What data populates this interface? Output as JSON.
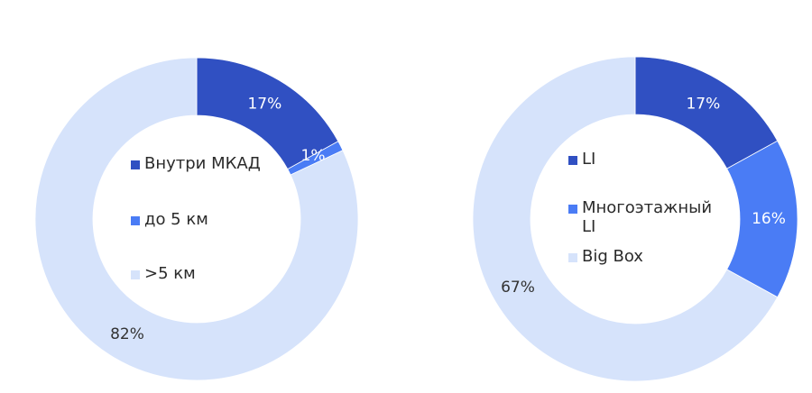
{
  "chart_data": [
    {
      "type": "pie",
      "hole": true,
      "labels": [
        "Внутри МКАД",
        "до 5 км",
        ">5 км"
      ],
      "values": [
        17,
        1,
        82
      ],
      "data_labels": [
        "17%",
        "1%",
        "82%"
      ],
      "colors": [
        "#3050c2",
        "#4a7cf5",
        "#d6e3fb"
      ],
      "legend_position": "center"
    },
    {
      "type": "pie",
      "hole": true,
      "labels": [
        "LI",
        "Многоэтажный\nLI",
        "Big Box"
      ],
      "values": [
        17,
        16,
        67
      ],
      "data_labels": [
        "17%",
        "16%",
        "67%"
      ],
      "colors": [
        "#3050c2",
        "#4a7cf5",
        "#d6e3fb"
      ],
      "legend_position": "center"
    }
  ]
}
